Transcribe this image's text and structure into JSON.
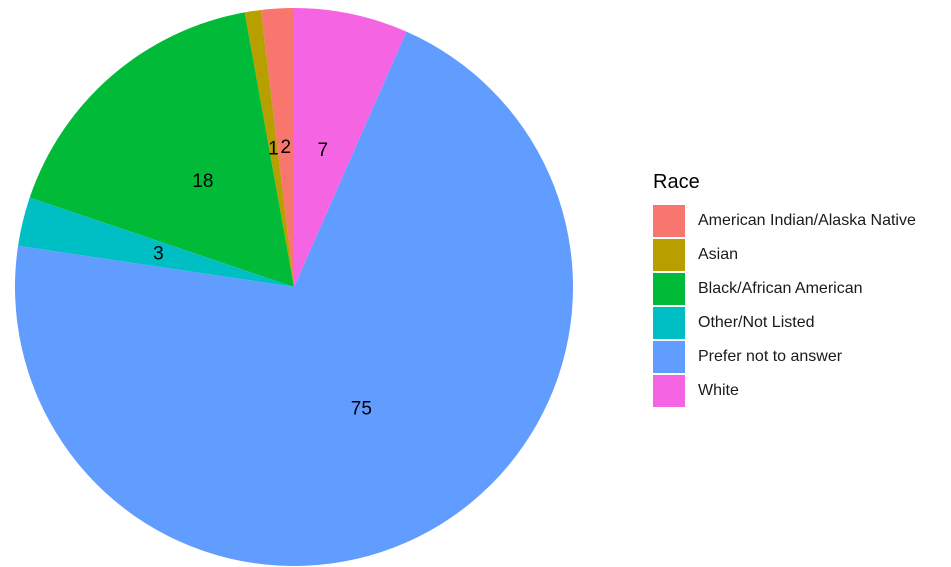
{
  "chart_data": {
    "type": "pie",
    "legend_title": "Race",
    "legend_position": "right",
    "series": [
      {
        "name": "American Indian/Alaska Native",
        "value": 2,
        "color": "#F8766D"
      },
      {
        "name": "Asian",
        "value": 1,
        "color": "#B79F00"
      },
      {
        "name": "Black/African American",
        "value": 18,
        "color": "#00BA38"
      },
      {
        "name": "Other/Not Listed",
        "value": 3,
        "color": "#00BFC4"
      },
      {
        "name": "Prefer not to answer",
        "value": 75,
        "color": "#619CFF"
      },
      {
        "name": "White",
        "value": 7,
        "color": "#F564E3"
      }
    ]
  }
}
